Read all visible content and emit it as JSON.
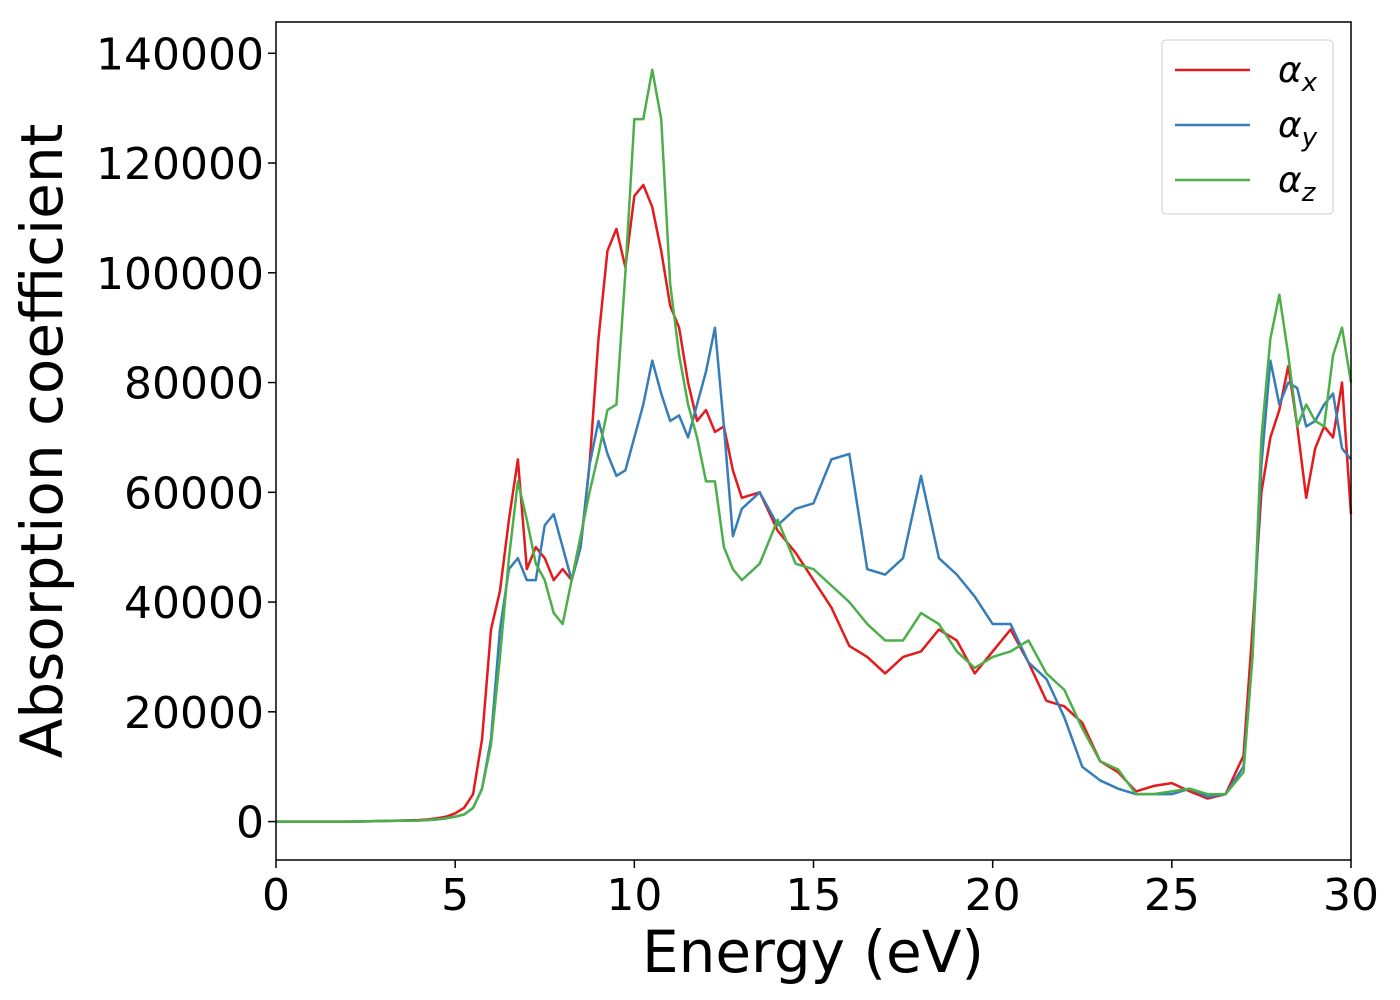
{
  "chart_data": {
    "type": "line",
    "xlabel": "Energy (eV)",
    "ylabel": "Absorption coefficient",
    "x": [
      0,
      1,
      2,
      3,
      4,
      4.25,
      4.5,
      4.75,
      5,
      5.25,
      5.5,
      5.75,
      6,
      6.25,
      6.5,
      6.75,
      7,
      7.25,
      7.5,
      7.75,
      8,
      8.25,
      8.5,
      8.75,
      9,
      9.25,
      9.5,
      9.75,
      10,
      10.25,
      10.5,
      10.75,
      11,
      11.25,
      11.5,
      11.75,
      12,
      12.25,
      12.5,
      12.75,
      13,
      13.5,
      14,
      14.5,
      15,
      15.5,
      16,
      16.5,
      17,
      17.5,
      18,
      18.5,
      19,
      19.5,
      20,
      20.5,
      21,
      21.5,
      22,
      22.5,
      23,
      23.5,
      24,
      24.5,
      25,
      25.5,
      26,
      26.5,
      27,
      27.25,
      27.5,
      27.75,
      28,
      28.25,
      28.5,
      28.75,
      29,
      29.25,
      29.5,
      29.75,
      30
    ],
    "series": [
      {
        "name": "αx",
        "color": "#e41a1c",
        "values": [
          0,
          0,
          0,
          100,
          300,
          400,
          600,
          900,
          1500,
          2500,
          5000,
          15000,
          35000,
          42000,
          55000,
          66000,
          46000,
          50000,
          48000,
          44000,
          46000,
          44000,
          50000,
          65000,
          88000,
          104000,
          108000,
          101000,
          114000,
          116000,
          112000,
          104000,
          94000,
          90000,
          80000,
          73000,
          75000,
          71000,
          72000,
          64000,
          59000,
          60000,
          53000,
          49000,
          44000,
          39000,
          32000,
          30000,
          27000,
          30000,
          31000,
          35000,
          33000,
          27000,
          31000,
          35000,
          29000,
          22000,
          21000,
          18000,
          11000,
          9000,
          5500,
          6500,
          7000,
          5500,
          4200,
          5000,
          12000,
          35000,
          60000,
          70000,
          75000,
          83000,
          72000,
          59000,
          68000,
          72000,
          70000,
          80000,
          56000
        ]
      },
      {
        "name": "αy",
        "color": "#377eb8",
        "values": [
          0,
          0,
          0,
          100,
          200,
          300,
          400,
          600,
          900,
          1300,
          2500,
          6000,
          15000,
          35000,
          46000,
          48000,
          44000,
          44000,
          54000,
          56000,
          50000,
          44000,
          50000,
          65000,
          73000,
          67000,
          63000,
          64000,
          70000,
          76000,
          84000,
          78000,
          73000,
          74000,
          70000,
          76000,
          82000,
          90000,
          72000,
          52000,
          57000,
          60000,
          54000,
          57000,
          58000,
          66000,
          67000,
          46000,
          45000,
          48000,
          63000,
          48000,
          45000,
          41000,
          36000,
          36000,
          29000,
          26000,
          19000,
          10000,
          7500,
          6000,
          5000,
          5000,
          5000,
          6000,
          4500,
          5000,
          10000,
          30000,
          65000,
          84000,
          76000,
          80000,
          79000,
          72000,
          73000,
          76000,
          78000,
          68000,
          66000
        ]
      },
      {
        "name": "αz",
        "color": "#4daf4a",
        "values": [
          0,
          0,
          0,
          100,
          200,
          300,
          400,
          600,
          900,
          1300,
          2500,
          6000,
          14000,
          30000,
          48000,
          62000,
          55000,
          47000,
          44000,
          38000,
          36000,
          44000,
          52000,
          60000,
          67000,
          75000,
          76000,
          100000,
          128000,
          128000,
          137000,
          128000,
          98000,
          85000,
          76000,
          70000,
          62000,
          62000,
          50000,
          46000,
          44000,
          47000,
          55000,
          47000,
          46000,
          43000,
          40000,
          36000,
          33000,
          33000,
          38000,
          36000,
          31000,
          28000,
          30000,
          31000,
          33000,
          27000,
          24000,
          17000,
          11000,
          9500,
          5000,
          5000,
          5500,
          6000,
          5000,
          5000,
          9000,
          30000,
          70000,
          88000,
          96000,
          85000,
          72000,
          76000,
          73000,
          72000,
          85000,
          90000,
          80000
        ]
      }
    ],
    "xlim": [
      0,
      30
    ],
    "xticks": [
      0,
      5,
      10,
      15,
      20,
      25,
      30
    ],
    "ylim": [
      -7000,
      145700
    ],
    "yticks": [
      0,
      20000,
      40000,
      60000,
      80000,
      100000,
      120000,
      140000
    ],
    "grid": false,
    "legend": "upper right"
  }
}
